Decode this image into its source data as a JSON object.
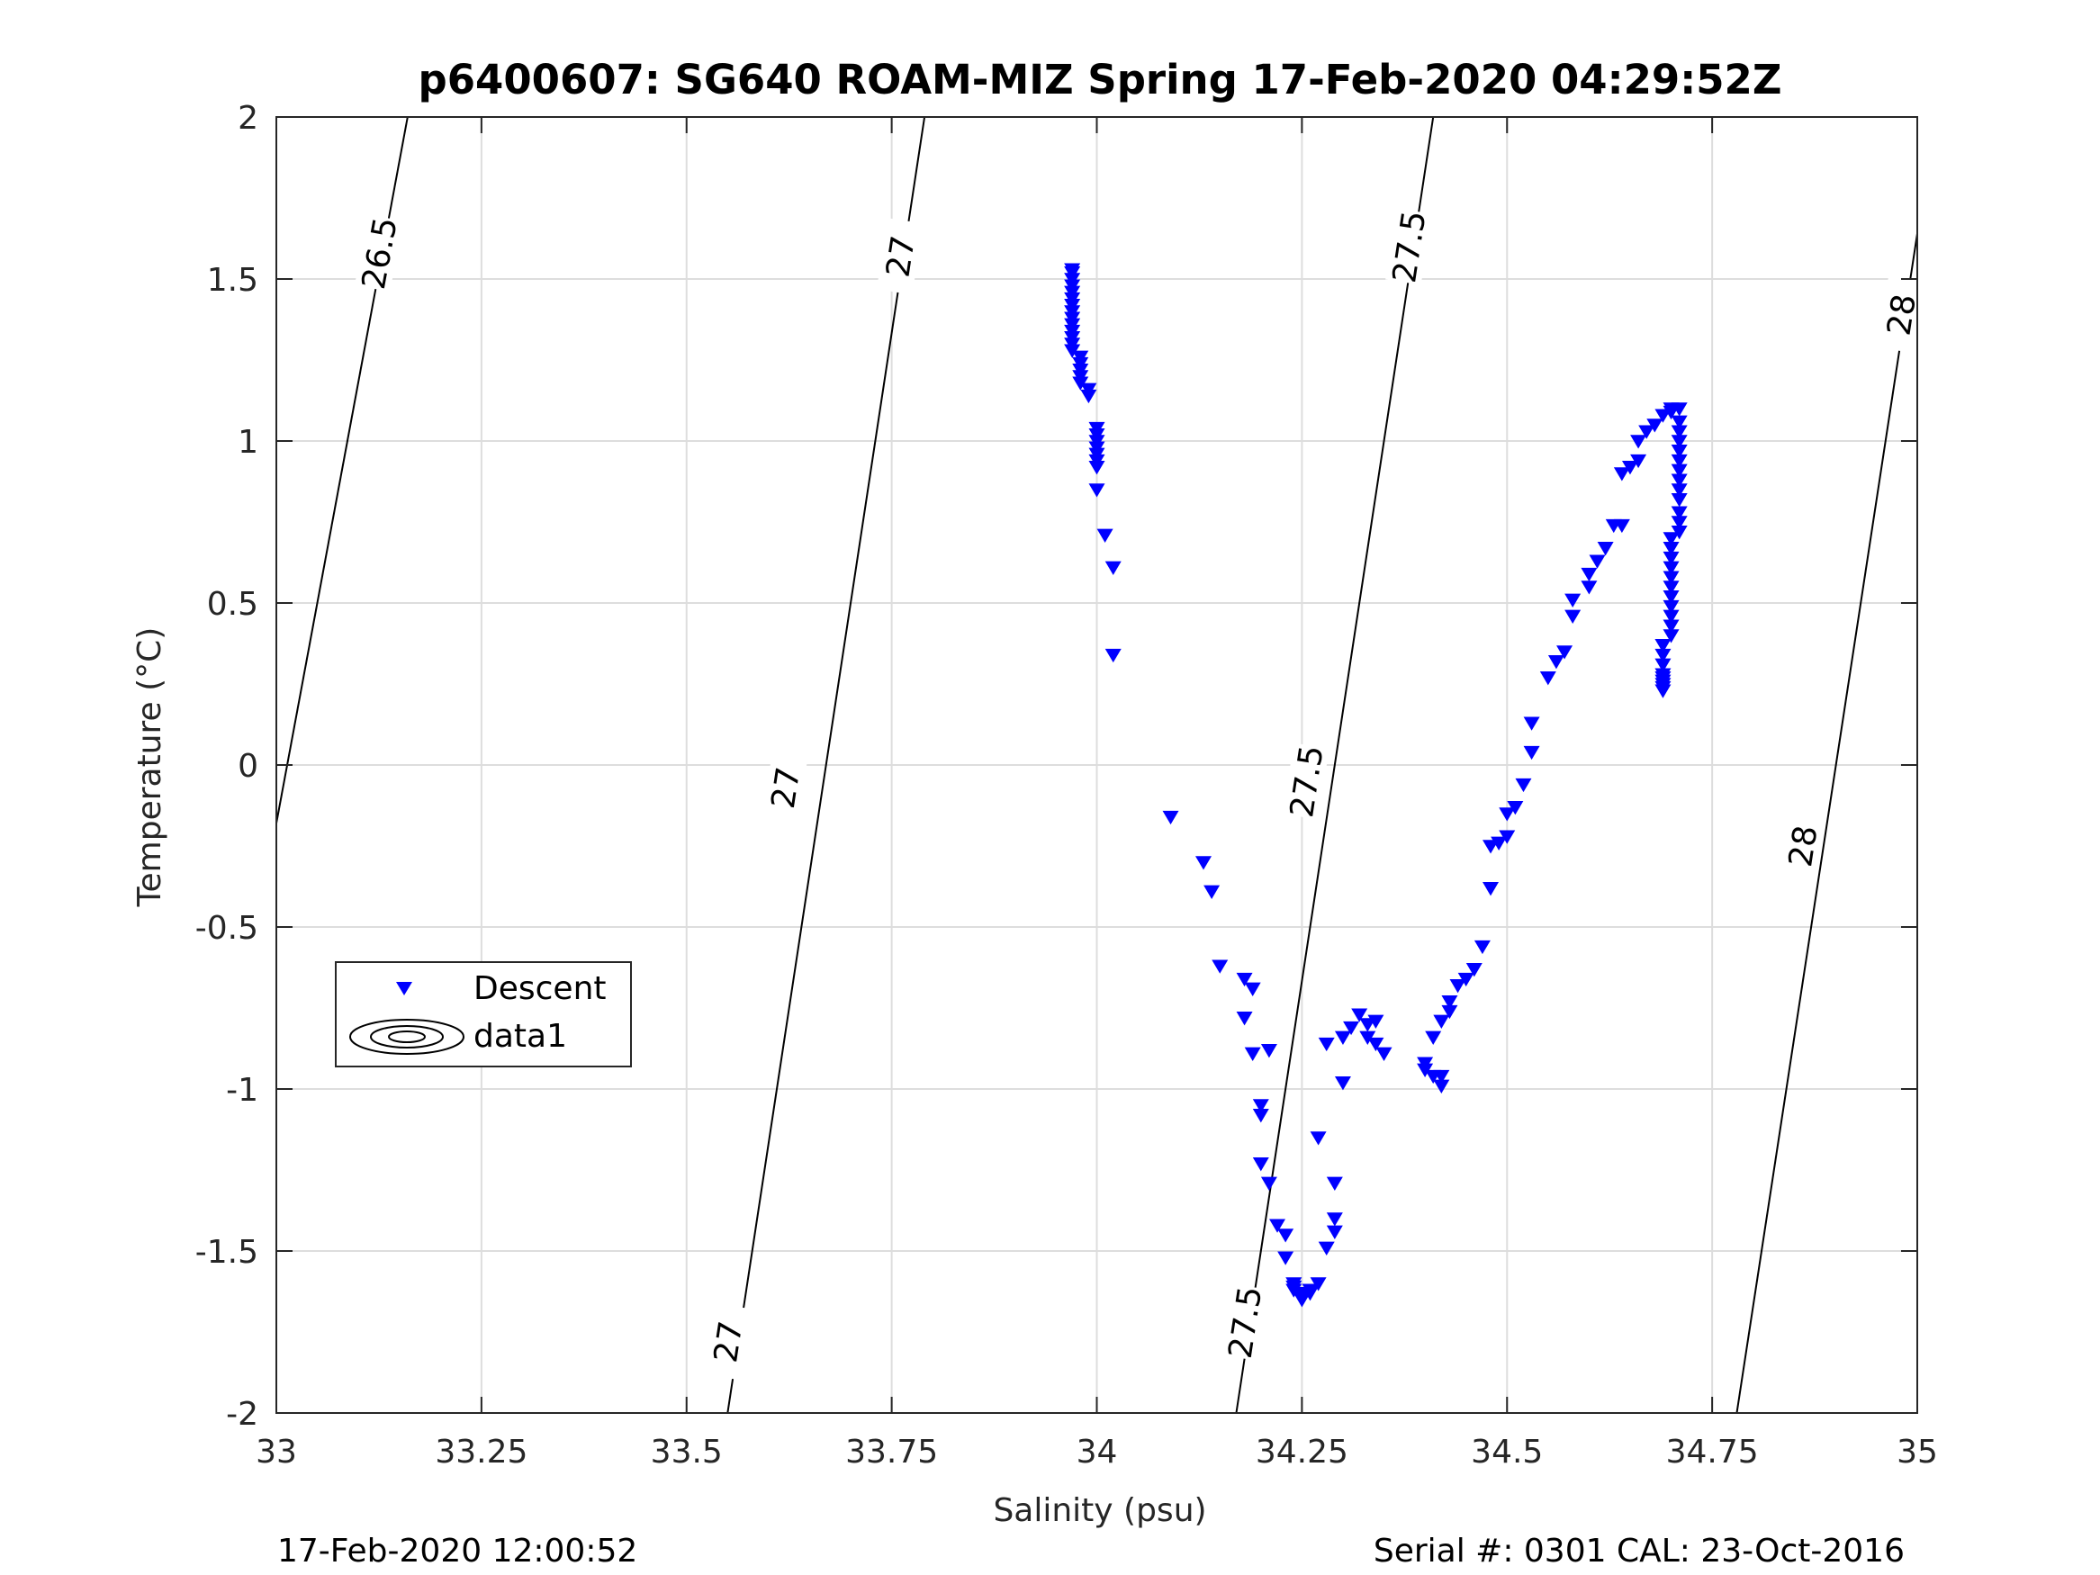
{
  "chart_data": {
    "type": "scatter",
    "title": "p6400607: SG640 ROAM-MIZ Spring 17-Feb-2020 04:29:52Z",
    "xlabel": "Salinity (psu)",
    "ylabel": "Temperature (°C)",
    "xlim": [
      33,
      35
    ],
    "ylim": [
      -2,
      2
    ],
    "x_ticks": [
      "33",
      "33.25",
      "33.5",
      "33.75",
      "34",
      "34.25",
      "34.5",
      "34.75",
      "35"
    ],
    "y_ticks": [
      "-2",
      "-1.5",
      "-1",
      "-0.5",
      "0",
      "0.5",
      "1",
      "1.5",
      "2"
    ],
    "grid": true,
    "legend": {
      "placement": "lower-left",
      "entries": [
        "Descent",
        "data1"
      ]
    },
    "colors": {
      "descent": "#0000ff",
      "contour": "#000000",
      "grid": "#dddddd",
      "axis": "#262626"
    },
    "series": [
      {
        "name": "Descent",
        "marker": "down-triangle",
        "points": [
          [
            33.97,
            1.53
          ],
          [
            33.97,
            1.52
          ],
          [
            33.97,
            1.5
          ],
          [
            33.97,
            1.48
          ],
          [
            33.97,
            1.46
          ],
          [
            33.97,
            1.44
          ],
          [
            33.97,
            1.42
          ],
          [
            33.97,
            1.4
          ],
          [
            33.97,
            1.38
          ],
          [
            33.97,
            1.36
          ],
          [
            33.97,
            1.34
          ],
          [
            33.97,
            1.32
          ],
          [
            33.97,
            1.3
          ],
          [
            33.97,
            1.28
          ],
          [
            33.98,
            1.26
          ],
          [
            33.98,
            1.24
          ],
          [
            33.98,
            1.22
          ],
          [
            33.98,
            1.2
          ],
          [
            33.98,
            1.18
          ],
          [
            33.99,
            1.16
          ],
          [
            33.99,
            1.14
          ],
          [
            34.0,
            1.04
          ],
          [
            34.0,
            1.02
          ],
          [
            34.0,
            1.0
          ],
          [
            34.0,
            0.98
          ],
          [
            34.0,
            0.96
          ],
          [
            34.0,
            0.94
          ],
          [
            34.0,
            0.92
          ],
          [
            34.0,
            0.85
          ],
          [
            34.01,
            0.71
          ],
          [
            34.02,
            0.61
          ],
          [
            34.02,
            0.34
          ],
          [
            34.09,
            -0.16
          ],
          [
            34.13,
            -0.3
          ],
          [
            34.14,
            -0.39
          ],
          [
            34.15,
            -0.62
          ],
          [
            34.18,
            -0.66
          ],
          [
            34.18,
            -0.78
          ],
          [
            34.19,
            -0.69
          ],
          [
            34.19,
            -0.89
          ],
          [
            34.21,
            -0.88
          ],
          [
            34.2,
            -1.05
          ],
          [
            34.2,
            -1.08
          ],
          [
            34.2,
            -1.23
          ],
          [
            34.21,
            -1.29
          ],
          [
            34.22,
            -1.42
          ],
          [
            34.23,
            -1.45
          ],
          [
            34.23,
            -1.52
          ],
          [
            34.24,
            -1.6
          ],
          [
            34.24,
            -1.61
          ],
          [
            34.24,
            -1.62
          ],
          [
            34.25,
            -1.63
          ],
          [
            34.25,
            -1.64
          ],
          [
            34.25,
            -1.65
          ],
          [
            34.26,
            -1.63
          ],
          [
            34.26,
            -1.62
          ],
          [
            34.27,
            -1.6
          ],
          [
            34.27,
            -1.15
          ],
          [
            34.28,
            -1.49
          ],
          [
            34.28,
            -0.86
          ],
          [
            34.29,
            -1.29
          ],
          [
            34.29,
            -1.4
          ],
          [
            34.29,
            -1.44
          ],
          [
            34.3,
            -0.98
          ],
          [
            34.3,
            -0.84
          ],
          [
            34.31,
            -0.81
          ],
          [
            34.32,
            -0.77
          ],
          [
            34.33,
            -0.8
          ],
          [
            34.33,
            -0.84
          ],
          [
            34.34,
            -0.86
          ],
          [
            34.34,
            -0.79
          ],
          [
            34.35,
            -0.89
          ],
          [
            34.4,
            -0.92
          ],
          [
            34.4,
            -0.94
          ],
          [
            34.41,
            -0.96
          ],
          [
            34.41,
            -0.84
          ],
          [
            34.42,
            -0.96
          ],
          [
            34.42,
            -0.99
          ],
          [
            34.42,
            -0.79
          ],
          [
            34.43,
            -0.76
          ],
          [
            34.43,
            -0.73
          ],
          [
            34.44,
            -0.68
          ],
          [
            34.45,
            -0.66
          ],
          [
            34.46,
            -0.63
          ],
          [
            34.47,
            -0.56
          ],
          [
            34.48,
            -0.38
          ],
          [
            34.48,
            -0.25
          ],
          [
            34.49,
            -0.24
          ],
          [
            34.5,
            -0.22
          ],
          [
            34.5,
            -0.15
          ],
          [
            34.51,
            -0.13
          ],
          [
            34.52,
            -0.06
          ],
          [
            34.53,
            0.04
          ],
          [
            34.53,
            0.13
          ],
          [
            34.55,
            0.27
          ],
          [
            34.56,
            0.32
          ],
          [
            34.57,
            0.35
          ],
          [
            34.58,
            0.46
          ],
          [
            34.58,
            0.51
          ],
          [
            34.6,
            0.55
          ],
          [
            34.6,
            0.59
          ],
          [
            34.61,
            0.63
          ],
          [
            34.62,
            0.67
          ],
          [
            34.63,
            0.74
          ],
          [
            34.64,
            0.74
          ],
          [
            34.64,
            0.9
          ],
          [
            34.65,
            0.92
          ],
          [
            34.66,
            0.94
          ],
          [
            34.66,
            1.0
          ],
          [
            34.67,
            1.03
          ],
          [
            34.68,
            1.05
          ],
          [
            34.69,
            1.08
          ],
          [
            34.7,
            1.1
          ],
          [
            34.7,
            1.09
          ],
          [
            34.71,
            1.1
          ],
          [
            34.71,
            1.06
          ],
          [
            34.71,
            1.03
          ],
          [
            34.71,
            1.0
          ],
          [
            34.71,
            0.97
          ],
          [
            34.71,
            0.94
          ],
          [
            34.71,
            0.91
          ],
          [
            34.71,
            0.88
          ],
          [
            34.71,
            0.85
          ],
          [
            34.71,
            0.82
          ],
          [
            34.71,
            0.78
          ],
          [
            34.71,
            0.75
          ],
          [
            34.71,
            0.72
          ],
          [
            34.7,
            0.7
          ],
          [
            34.7,
            0.67
          ],
          [
            34.7,
            0.64
          ],
          [
            34.7,
            0.61
          ],
          [
            34.7,
            0.58
          ],
          [
            34.7,
            0.55
          ],
          [
            34.7,
            0.52
          ],
          [
            34.7,
            0.49
          ],
          [
            34.7,
            0.46
          ],
          [
            34.7,
            0.43
          ],
          [
            34.7,
            0.4
          ],
          [
            34.69,
            0.37
          ],
          [
            34.69,
            0.34
          ],
          [
            34.69,
            0.31
          ],
          [
            34.69,
            0.28
          ],
          [
            34.69,
            0.26
          ],
          [
            34.69,
            0.24
          ],
          [
            34.69,
            0.23
          ],
          [
            34.69,
            0.25
          ],
          [
            34.69,
            0.27
          ]
        ]
      }
    ],
    "contours": [
      {
        "label": "26.5",
        "points": [
          [
            33.0,
            -0.18
          ],
          [
            33.16,
            2.0
          ]
        ],
        "labels_at": [
          [
            33.125,
            1.58
          ]
        ]
      },
      {
        "label": "27",
        "points": [
          [
            33.55,
            -2.0
          ],
          [
            33.79,
            2.0
          ]
        ],
        "labels_at": [
          [
            33.55,
            -1.78
          ],
          [
            33.62,
            -0.07
          ],
          [
            33.76,
            1.57
          ]
        ]
      },
      {
        "label": "27.5",
        "points": [
          [
            34.17,
            -2.0
          ],
          [
            34.41,
            2.0
          ]
        ],
        "labels_at": [
          [
            34.18,
            -1.72
          ],
          [
            34.255,
            -0.05
          ],
          [
            34.38,
            1.6
          ]
        ]
      },
      {
        "label": "28",
        "points": [
          [
            34.78,
            -2.0
          ],
          [
            35.0,
            1.64
          ]
        ],
        "labels_at": [
          [
            34.86,
            -0.25
          ],
          [
            34.98,
            1.39
          ]
        ]
      }
    ]
  },
  "footer": {
    "left": "17-Feb-2020 12:00:52",
    "right": "Serial #: 0301  CAL: 23-Oct-2016"
  }
}
